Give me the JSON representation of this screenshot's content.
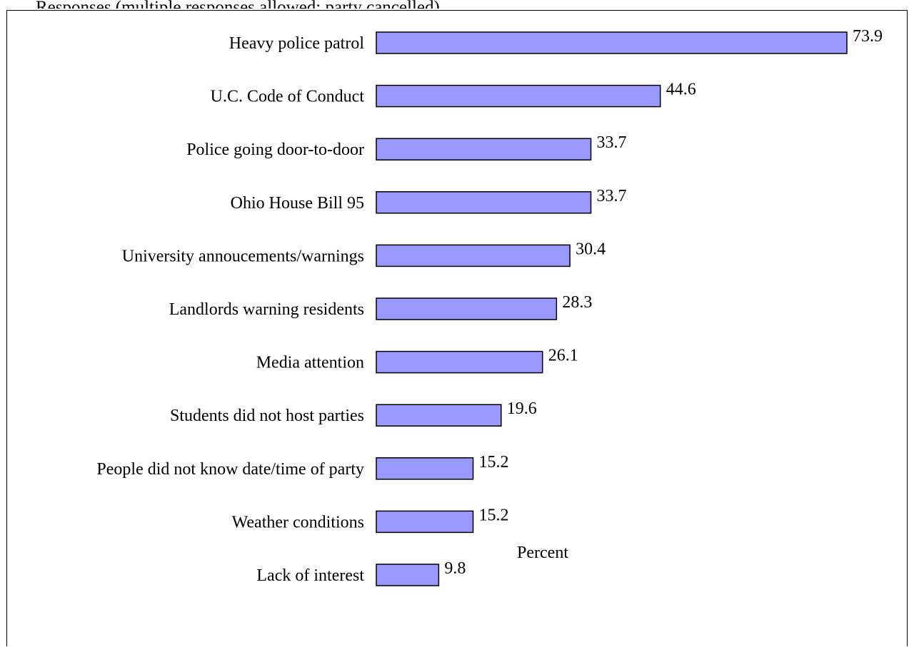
{
  "page": {
    "cut_heading": "Responses (multiple responses allowed; party cancelled)"
  },
  "chart_data": {
    "type": "bar",
    "orientation": "horizontal",
    "title": "",
    "xlabel": "Percent",
    "ylabel": "",
    "xlim": [
      0,
      75
    ],
    "grid": false,
    "legend": "none",
    "bar_color": "#9999ff",
    "bar_border_color": "#000000",
    "categories": [
      "Heavy police patrol",
      "U.C. Code of Conduct",
      "Police going door-to-door",
      "Ohio House Bill 95",
      "University annoucements/warnings",
      "Landlords warning residents",
      "Media attention",
      "Students did not host parties",
      "People did not know date/time of party",
      "Weather conditions",
      "Lack of interest"
    ],
    "values": [
      73.9,
      44.6,
      33.7,
      33.7,
      30.4,
      28.3,
      26.1,
      19.6,
      15.2,
      15.2,
      9.8
    ],
    "value_labels": [
      "73.9",
      "44.6",
      "33.7",
      "33.7",
      "30.4",
      "28.3",
      "26.1",
      "19.6",
      "15.2",
      "15.2",
      "9.8"
    ]
  }
}
